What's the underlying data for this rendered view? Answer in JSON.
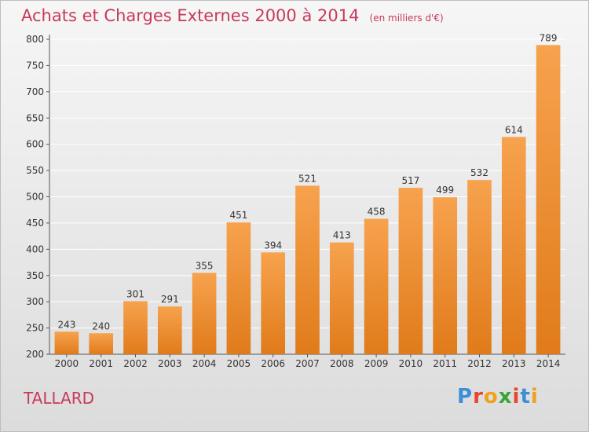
{
  "header": {
    "title": "Achats et Charges Externes 2000 à 2014",
    "subtitle": "(en milliers d'€)"
  },
  "footer": {
    "city": "TALLARD",
    "brand": "Proxiti"
  },
  "colors": {
    "bar_top": "#f7a24e",
    "bar_bottom": "#e07b1a",
    "title": "#c73a5b",
    "grid": "#ffffff"
  },
  "chart_data": {
    "type": "bar",
    "title": "Achats et Charges Externes 2000 à 2014",
    "subtitle": "(en milliers d'€)",
    "xlabel": "",
    "ylabel": "",
    "categories": [
      "2000",
      "2001",
      "2002",
      "2003",
      "2004",
      "2005",
      "2006",
      "2007",
      "2008",
      "2009",
      "2010",
      "2011",
      "2012",
      "2013",
      "2014"
    ],
    "values": [
      243,
      240,
      301,
      291,
      355,
      451,
      394,
      521,
      413,
      458,
      517,
      499,
      532,
      614,
      789
    ],
    "ylim": [
      200,
      800
    ],
    "yticks": [
      200,
      250,
      300,
      350,
      400,
      450,
      500,
      550,
      600,
      650,
      700,
      750,
      800
    ],
    "grid": true,
    "data_labels": true
  }
}
